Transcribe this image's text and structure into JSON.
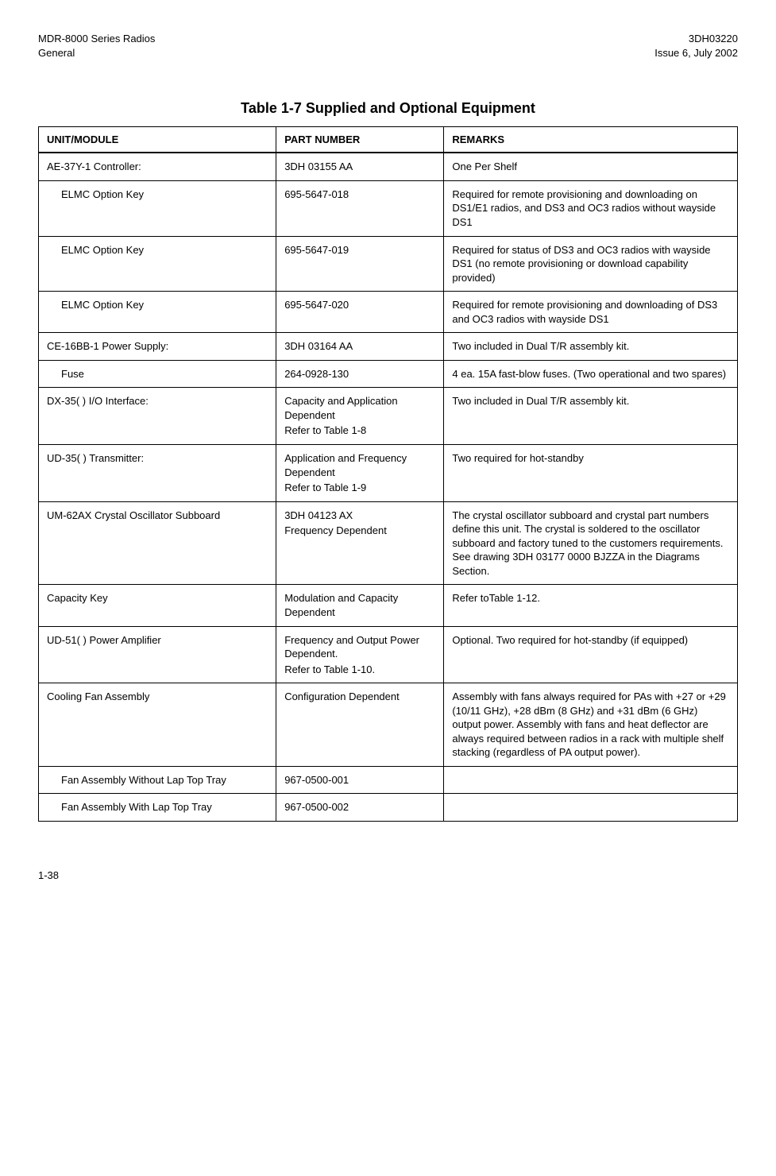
{
  "header": {
    "left1": "MDR-8000 Series Radios",
    "left2": "General",
    "right1": "3DH03220",
    "right2": "Issue 6, July 2002"
  },
  "tableTitle": "Table 1-7   Supplied and Optional Equipment",
  "columns": {
    "c1": "UNIT/MODULE",
    "c2": "PART NUMBER",
    "c3": "REMARKS"
  },
  "rows": [
    {
      "indent": false,
      "unit": "AE-37Y-1 Controller:",
      "part": "3DH 03155 AA",
      "partSub": "",
      "remarks": "One Per Shelf"
    },
    {
      "indent": true,
      "unit": "ELMC Option Key",
      "part": "695-5647-018",
      "partSub": "",
      "remarks": "Required for remote provisioning and downloading on DS1/E1 radios, and DS3 and OC3 radios without wayside DS1"
    },
    {
      "indent": true,
      "unit": "ELMC Option Key",
      "part": "695-5647-019",
      "partSub": "",
      "remarks": "Required for status of DS3 and OC3 radios with wayside DS1 (no remote provisioning or download capability provided)"
    },
    {
      "indent": true,
      "unit": "ELMC Option Key",
      "part": "695-5647-020",
      "partSub": "",
      "remarks": "Required for remote provisioning and downloading of DS3 and OC3 radios with wayside DS1"
    },
    {
      "indent": false,
      "unit": "CE-16BB-1 Power Supply:",
      "part": "3DH 03164 AA",
      "partSub": "",
      "remarks": "Two included in Dual T/R assembly kit."
    },
    {
      "indent": true,
      "unit": "Fuse",
      "part": "264-0928-130",
      "partSub": "",
      "remarks": "4 ea. 15A fast-blow fuses. (Two operational and two spares)"
    },
    {
      "indent": false,
      "unit": "DX-35( ) I/O Interface:",
      "part": "Capacity and Application Dependent",
      "partSub": "Refer to Table 1-8",
      "remarks": "Two included in Dual T/R assembly kit."
    },
    {
      "indent": false,
      "unit": "UD-35( ) Transmitter:",
      "part": "Application and Frequency Dependent",
      "partSub": "Refer to Table 1-9",
      "remarks": "Two required for hot-standby"
    },
    {
      "indent": false,
      "unit": "UM-62AX Crystal Oscillator Subboard",
      "part": "3DH 04123 AX",
      "partSub": "Frequency Dependent",
      "remarks": "The crystal oscillator subboard and crystal part numbers define this unit. The crystal is soldered to the oscillator subboard and factory tuned to the customers requirements. See drawing 3DH 03177 0000 BJZZA in the Diagrams Section."
    },
    {
      "indent": false,
      "unit": "Capacity Key",
      "part": "Modulation and Capacity Dependent",
      "partSub": "",
      "remarks": "Refer toTable 1-12."
    },
    {
      "indent": false,
      "unit": "UD-51( ) Power Amplifier",
      "part": "Frequency and Output Power Dependent.",
      "partSub": "Refer to Table 1-10.",
      "remarks": "Optional. Two required for hot-standby (if equipped)"
    },
    {
      "indent": false,
      "unit": "Cooling Fan Assembly",
      "part": "Configuration Dependent",
      "partSub": "",
      "remarks": "Assembly with fans always required for PAs with +27 or +29 (10/11 GHz), +28 dBm (8 GHz) and +31 dBm (6 GHz) output power. Assembly with fans and heat deflector are always required between radios in a rack with multiple shelf stacking (regardless of PA output power)."
    },
    {
      "indent": true,
      "unit": "Fan Assembly Without Lap Top Tray",
      "part": "967-0500-001",
      "partSub": "",
      "remarks": ""
    },
    {
      "indent": true,
      "unit": "Fan Assembly With Lap Top Tray",
      "part": "967-0500-002",
      "partSub": "",
      "remarks": ""
    }
  ],
  "pageNum": "1-38"
}
